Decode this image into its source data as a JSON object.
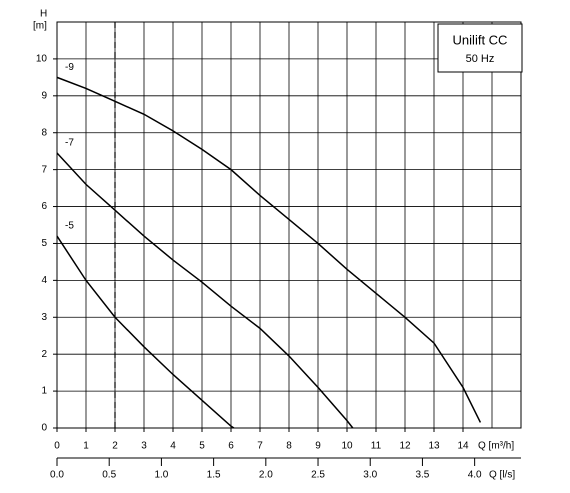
{
  "chart_data": {
    "type": "line",
    "title": "Unilift CC",
    "subtitle": "50 Hz",
    "y_label": "H",
    "y_unit": "[m]",
    "x_label": "Q [m³/h]",
    "x2_label": "Q [l/s]",
    "xlim": [
      0,
      16
    ],
    "ylim": [
      0,
      11
    ],
    "xticks": [
      0,
      1,
      2,
      3,
      4,
      5,
      6,
      7,
      8,
      9,
      10,
      11,
      12,
      13,
      14
    ],
    "yticks": [
      0,
      1,
      2,
      3,
      4,
      5,
      6,
      7,
      8,
      9,
      10
    ],
    "x2lim": [
      0,
      4.444
    ],
    "x2ticks": [
      {
        "value": 0,
        "label": "0.0"
      },
      {
        "value": 0.5,
        "label": "0.5"
      },
      {
        "value": 1,
        "label": "1.0"
      },
      {
        "value": 1.5,
        "label": "1.5"
      },
      {
        "value": 2,
        "label": "2.0"
      },
      {
        "value": 2.5,
        "label": "2.5"
      },
      {
        "value": 3,
        "label": "3.0"
      },
      {
        "value": 3.5,
        "label": "3.5"
      },
      {
        "value": 4,
        "label": "4.0"
      }
    ],
    "grid": true,
    "reference_x": 2,
    "color": "#000000",
    "series": [
      {
        "name": "-9",
        "x": [
          0,
          1,
          2,
          3,
          4,
          5,
          6,
          7,
          8,
          9,
          10,
          11,
          12,
          13,
          14,
          14.6
        ],
        "values": [
          9.5,
          9.2,
          8.85,
          8.5,
          8.05,
          7.55,
          7.0,
          6.3,
          5.65,
          5.0,
          4.3,
          3.65,
          3.0,
          2.3,
          1.1,
          0.15
        ]
      },
      {
        "name": "-7",
        "x": [
          0,
          1,
          2,
          3,
          4,
          5,
          6,
          7,
          8,
          9,
          10,
          10.2
        ],
        "values": [
          7.45,
          6.6,
          5.9,
          5.2,
          4.55,
          3.95,
          3.3,
          2.7,
          1.95,
          1.1,
          0.2,
          0
        ]
      },
      {
        "name": "-5",
        "x": [
          0,
          1,
          2,
          3,
          4,
          5,
          6,
          6.1
        ],
        "values": [
          5.2,
          4.0,
          3.0,
          2.2,
          1.45,
          0.75,
          0.05,
          0
        ]
      }
    ]
  }
}
